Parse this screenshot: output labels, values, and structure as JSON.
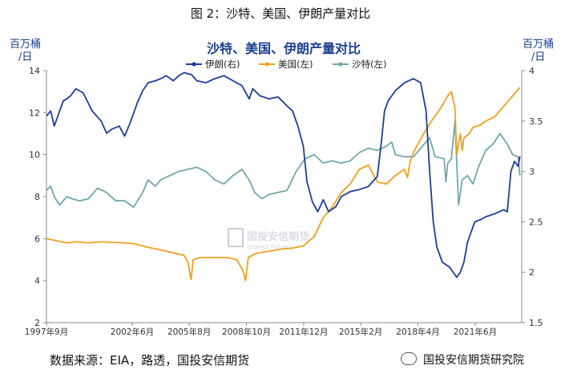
{
  "figure_title": "图 2：沙特、美国、伊朗产量对比",
  "left_unit": [
    "百万桶",
    "/日"
  ],
  "right_unit": [
    "百万桶",
    "/日"
  ],
  "source": "数据来源：EIA，路透，国投安信期货",
  "wechat_label": "国投安信期货研究院",
  "watermark": {
    "name": "国投安信期货",
    "sub": "ESSENCE FUTURES"
  },
  "colors": {
    "iran": "#1f3d99",
    "us": "#f0a021",
    "saudi": "#74a7a9",
    "axis": "#888888"
  },
  "chart_data": {
    "type": "line",
    "title": "沙特、美国、伊朗产量对比",
    "x_range": [
      1997.67,
      2024.0
    ],
    "y_left": {
      "min": 2,
      "max": 14,
      "ticks": [
        2,
        4,
        6,
        8,
        10,
        12,
        14
      ]
    },
    "y_right": {
      "min": 1.5,
      "max": 4,
      "ticks": [
        1.5,
        2,
        2.5,
        3,
        3.5,
        4
      ]
    },
    "x_ticks": [
      {
        "x": 1997.67,
        "label": "1997年9月"
      },
      {
        "x": 2002.42,
        "label": "2002年6月"
      },
      {
        "x": 2005.58,
        "label": "2005年8月"
      },
      {
        "x": 2008.75,
        "label": "2008年10月"
      },
      {
        "x": 2011.92,
        "label": "2011年12月"
      },
      {
        "x": 2015.08,
        "label": "2015年2月"
      },
      {
        "x": 2018.25,
        "label": "2018年4月"
      },
      {
        "x": 2021.42,
        "label": "2021年6月"
      }
    ],
    "series": [
      {
        "name": "伊朗(右)",
        "axis": "right",
        "key": "iran",
        "x": [
          1997.67,
          1997.9,
          1998.1,
          1998.3,
          1998.6,
          1998.8,
          1999.0,
          1999.3,
          1999.7,
          2000.2,
          2000.7,
          2001.0,
          2001.3,
          2001.7,
          2002.0,
          2002.3,
          2002.7,
          2003.0,
          2003.3,
          2003.7,
          2004.0,
          2004.3,
          2004.7,
          2005.0,
          2005.3,
          2005.7,
          2006.0,
          2006.5,
          2007.0,
          2007.5,
          2008.0,
          2008.5,
          2008.9,
          2009.1,
          2009.5,
          2010.0,
          2010.5,
          2011.0,
          2011.3,
          2011.6,
          2011.9,
          2012.1,
          2012.4,
          2012.7,
          2013.0,
          2013.3,
          2013.7,
          2014.0,
          2014.5,
          2015.0,
          2015.5,
          2016.0,
          2016.2,
          2016.4,
          2016.6,
          2016.8,
          2017.0,
          2017.5,
          2018.0,
          2018.4,
          2018.7,
          2018.9,
          2019.1,
          2019.3,
          2019.6,
          2020.0,
          2020.4,
          2020.6,
          2020.8,
          2021.0,
          2021.2,
          2021.4,
          2021.7,
          2022.0,
          2022.5,
          2023.0,
          2023.2,
          2023.4,
          2023.6,
          2023.8,
          2023.9
        ],
        "values": [
          3.55,
          3.6,
          3.45,
          3.55,
          3.7,
          3.72,
          3.75,
          3.82,
          3.78,
          3.6,
          3.5,
          3.38,
          3.42,
          3.45,
          3.35,
          3.48,
          3.68,
          3.8,
          3.88,
          3.9,
          3.92,
          3.95,
          3.9,
          3.95,
          3.98,
          3.96,
          3.9,
          3.88,
          3.92,
          3.95,
          3.9,
          3.85,
          3.72,
          3.82,
          3.75,
          3.72,
          3.74,
          3.65,
          3.6,
          3.45,
          3.25,
          2.9,
          2.7,
          2.6,
          2.72,
          2.6,
          2.65,
          2.75,
          2.8,
          2.82,
          2.85,
          2.95,
          3.25,
          3.6,
          3.7,
          3.75,
          3.8,
          3.88,
          3.92,
          3.88,
          3.6,
          3.0,
          2.5,
          2.25,
          2.1,
          2.05,
          1.95,
          2.0,
          2.1,
          2.3,
          2.4,
          2.5,
          2.52,
          2.55,
          2.58,
          2.62,
          2.6,
          3.0,
          3.1,
          3.05,
          3.15
        ]
      },
      {
        "name": "美国(左)",
        "axis": "left",
        "key": "us",
        "x": [
          1997.67,
          1998.2,
          1998.8,
          1999.3,
          2000.0,
          2000.7,
          2001.3,
          2002.0,
          2002.6,
          2003.2,
          2003.8,
          2004.3,
          2004.8,
          2005.3,
          2005.5,
          2005.68,
          2005.8,
          2006.2,
          2006.7,
          2007.2,
          2007.7,
          2008.2,
          2008.55,
          2008.7,
          2008.85,
          2009.3,
          2010.0,
          2010.7,
          2011.3,
          2011.9,
          2012.5,
          2013.0,
          2013.5,
          2014.0,
          2014.5,
          2015.0,
          2015.5,
          2016.0,
          2016.5,
          2017.0,
          2017.5,
          2017.67,
          2017.8,
          2018.0,
          2018.5,
          2019.0,
          2019.5,
          2019.9,
          2020.1,
          2020.3,
          2020.4,
          2020.6,
          2020.7,
          2020.8,
          2021.1,
          2021.3,
          2021.7,
          2022.0,
          2022.5,
          2023.0,
          2023.5,
          2023.9
        ],
        "values": [
          6.0,
          5.9,
          5.8,
          5.85,
          5.8,
          5.85,
          5.82,
          5.8,
          5.75,
          5.6,
          5.5,
          5.4,
          5.3,
          5.2,
          4.9,
          4.05,
          5.0,
          5.1,
          5.1,
          5.1,
          5.1,
          5.0,
          4.5,
          4.0,
          5.1,
          5.3,
          5.4,
          5.5,
          5.55,
          5.65,
          6.1,
          7.0,
          7.5,
          8.2,
          8.6,
          9.3,
          9.5,
          8.7,
          8.6,
          9.0,
          9.3,
          8.9,
          9.6,
          10.1,
          10.9,
          11.6,
          12.2,
          12.8,
          13.0,
          12.2,
          10.0,
          11.0,
          10.2,
          10.8,
          11.0,
          11.3,
          11.4,
          11.6,
          11.8,
          12.3,
          12.8,
          13.2
        ]
      },
      {
        "name": "沙特(左)",
        "axis": "left",
        "key": "saudi",
        "x": [
          1997.67,
          1997.9,
          1998.1,
          1998.4,
          1998.8,
          1999.1,
          1999.5,
          2000.0,
          2000.5,
          2001.0,
          2001.5,
          2002.0,
          2002.5,
          2003.0,
          2003.3,
          2003.7,
          2004.0,
          2004.5,
          2005.0,
          2005.5,
          2006.0,
          2006.5,
          2007.0,
          2007.5,
          2008.0,
          2008.5,
          2008.9,
          2009.2,
          2009.6,
          2010.0,
          2010.5,
          2011.0,
          2011.5,
          2012.0,
          2012.5,
          2013.0,
          2013.5,
          2014.0,
          2014.5,
          2015.0,
          2015.5,
          2016.0,
          2016.5,
          2016.8,
          2017.0,
          2017.5,
          2018.0,
          2018.5,
          2018.9,
          2019.2,
          2019.7,
          2019.8,
          2019.9,
          2020.1,
          2020.3,
          2020.5,
          2020.7,
          2021.0,
          2021.3,
          2021.6,
          2022.0,
          2022.4,
          2022.8,
          2023.2,
          2023.5,
          2023.8,
          2023.9
        ],
        "values": [
          8.3,
          8.5,
          8.0,
          7.6,
          8.0,
          7.9,
          7.8,
          7.9,
          8.4,
          8.2,
          7.8,
          7.8,
          7.5,
          8.2,
          8.8,
          8.5,
          8.8,
          9.0,
          9.2,
          9.3,
          9.4,
          9.2,
          8.8,
          8.6,
          9.0,
          9.3,
          8.8,
          8.2,
          7.9,
          8.1,
          8.2,
          8.3,
          9.2,
          9.8,
          10.0,
          9.6,
          9.7,
          9.6,
          9.7,
          10.1,
          10.3,
          10.2,
          10.4,
          10.6,
          10.0,
          9.9,
          9.9,
          10.4,
          10.8,
          9.9,
          9.8,
          8.7,
          9.6,
          9.8,
          11.6,
          7.6,
          8.8,
          9.0,
          8.6,
          9.4,
          10.2,
          10.5,
          11.0,
          10.5,
          10.0,
          9.9,
          9.0
        ]
      }
    ]
  }
}
